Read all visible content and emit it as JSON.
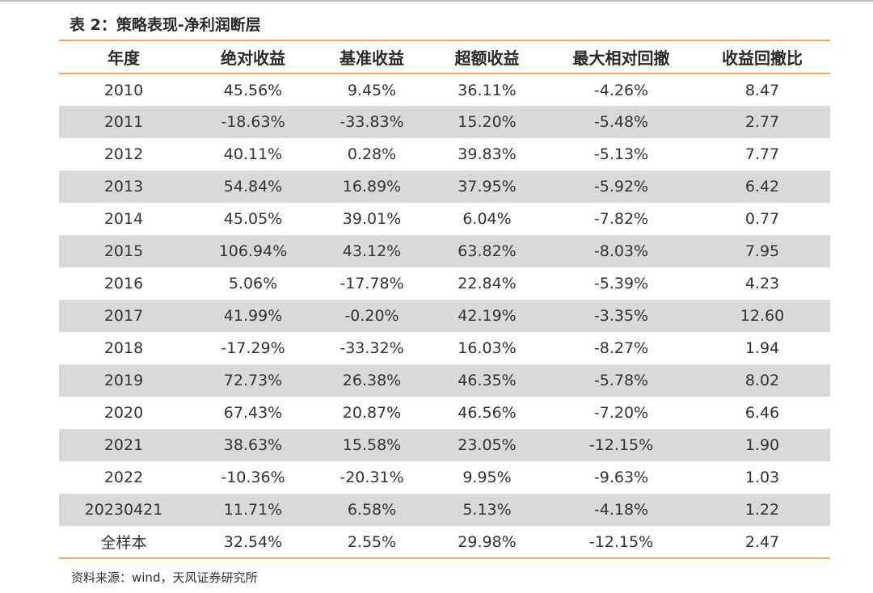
{
  "title": "表 2：策略表现-净利润断层",
  "colors": {
    "accent_line": "#f0a868",
    "shade_row": "#d9d9d9"
  },
  "table": {
    "headers": [
      "年度",
      "绝对收益",
      "基准收益",
      "超额收益",
      "最大相对回撤",
      "收益回撤比"
    ],
    "rows": [
      [
        "2010",
        "45.56%",
        "9.45%",
        "36.11%",
        "-4.26%",
        "8.47"
      ],
      [
        "2011",
        "-18.63%",
        "-33.83%",
        "15.20%",
        "-5.48%",
        "2.77"
      ],
      [
        "2012",
        "40.11%",
        "0.28%",
        "39.83%",
        "-5.13%",
        "7.77"
      ],
      [
        "2013",
        "54.84%",
        "16.89%",
        "37.95%",
        "-5.92%",
        "6.42"
      ],
      [
        "2014",
        "45.05%",
        "39.01%",
        "6.04%",
        "-7.82%",
        "0.77"
      ],
      [
        "2015",
        "106.94%",
        "43.12%",
        "63.82%",
        "-8.03%",
        "7.95"
      ],
      [
        "2016",
        "5.06%",
        "-17.78%",
        "22.84%",
        "-5.39%",
        "4.23"
      ],
      [
        "2017",
        "41.99%",
        "-0.20%",
        "42.19%",
        "-3.35%",
        "12.60"
      ],
      [
        "2018",
        "-17.29%",
        "-33.32%",
        "16.03%",
        "-8.27%",
        "1.94"
      ],
      [
        "2019",
        "72.73%",
        "26.38%",
        "46.35%",
        "-5.78%",
        "8.02"
      ],
      [
        "2020",
        "67.43%",
        "20.87%",
        "46.56%",
        "-7.20%",
        "6.46"
      ],
      [
        "2021",
        "38.63%",
        "15.58%",
        "23.05%",
        "-12.15%",
        "1.90"
      ],
      [
        "2022",
        "-10.36%",
        "-20.31%",
        "9.95%",
        "-9.63%",
        "1.03"
      ],
      [
        "20230421",
        "11.71%",
        "6.58%",
        "5.13%",
        "-4.18%",
        "1.22"
      ],
      [
        "全样本",
        "32.54%",
        "2.55%",
        "29.98%",
        "-12.15%",
        "2.47"
      ]
    ]
  },
  "source": "资料来源：wind，天风证券研究所"
}
